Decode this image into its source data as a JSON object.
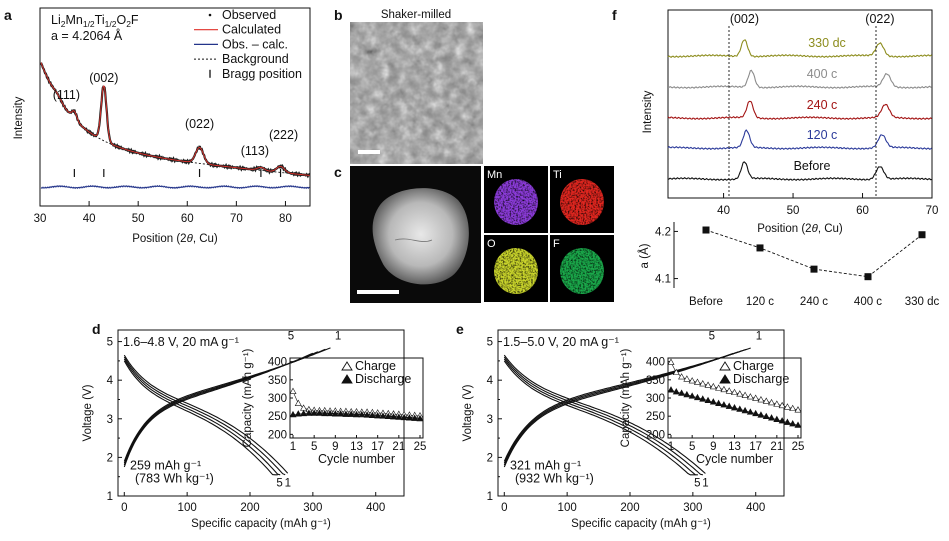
{
  "panels": {
    "a": {
      "letter": "a",
      "compound": "Li2Mn1/2Ti1/2O2F",
      "lattice_label": "a = 4.2064 Å",
      "ylabel": "Intensity",
      "xlabel": "Position (2θ, Cu)",
      "xticks": [
        30,
        40,
        50,
        60,
        70,
        80
      ],
      "legend": [
        "Observed",
        "Calculated",
        "Obs. – calc.",
        "Background",
        "Bragg position"
      ],
      "peaks": [
        {
          "label": "(111)",
          "x": 37
        },
        {
          "label": "(002)",
          "x": 43
        },
        {
          "label": "(022)",
          "x": 62.5
        },
        {
          "label": "(113)",
          "x": 75
        },
        {
          "label": "(222)",
          "x": 79
        }
      ],
      "bragg_positions": [
        37,
        43,
        62.5,
        75,
        79
      ]
    },
    "b": {
      "letter": "b",
      "title": "Shaker-milled"
    },
    "c": {
      "letter": "c",
      "maps": [
        "Mn",
        "Ti",
        "O",
        "F"
      ],
      "colors": [
        "#8b3bd9",
        "#e0261f",
        "#c9d42b",
        "#1aa84a"
      ]
    },
    "f": {
      "letter": "f",
      "ylabel": "Intensity",
      "xlabel": "Position (2θ, Cu)",
      "xticks": [
        40,
        50,
        60,
        70
      ],
      "peak_labels": [
        {
          "label": "(002)",
          "x": 43
        },
        {
          "label": "(022)",
          "x": 62.5
        }
      ],
      "patterns": [
        {
          "name": "330 dc",
          "color": "#8d8d1e"
        },
        {
          "name": "400 c",
          "color": "#8c8c8c"
        },
        {
          "name": "240 c",
          "color": "#a31414"
        },
        {
          "name": "120 c",
          "color": "#2b3a9a"
        },
        {
          "name": "Before",
          "color": "#111111"
        }
      ],
      "lattice": {
        "ylabel": "a (Å)",
        "yticks": [
          4.1,
          4.2
        ],
        "categories": [
          "Before",
          "120 c",
          "240 c",
          "400 c",
          "330 dc"
        ],
        "values": [
          4.203,
          4.165,
          4.12,
          4.104,
          4.193
        ]
      }
    },
    "d": {
      "letter": "d",
      "condition": "1.6–4.8 V, 20 mA g⁻¹",
      "ylabel": "Voltage (V)",
      "xlabel": "Specific capacity (mAh g⁻¹)",
      "xticks": [
        0,
        100,
        200,
        300,
        400
      ],
      "yticks": [
        1,
        1.5,
        2,
        2.5,
        3,
        3.5,
        4,
        4.5,
        5
      ],
      "capacity_note": "259 mAh g⁻¹",
      "energy_note": "(783 Wh kg⁻¹)",
      "charge_cycle_labels": [
        "5",
        "1"
      ],
      "discharge_cycle_labels": [
        "5",
        "1"
      ],
      "inset": {
        "ylabel": "Capacity (mAh g⁻¹)",
        "xlabel": "Cycle number",
        "xticks": [
          1,
          5,
          9,
          13,
          17,
          21,
          25
        ],
        "yticks": [
          200,
          250,
          300,
          350,
          400
        ],
        "series": [
          {
            "name": "Charge",
            "values": [
              318,
              285,
              272,
              268,
              266,
              265,
              265,
              264,
              264,
              263,
              263,
              262,
              262,
              261,
              261,
              260,
              259,
              258,
              257,
              256,
              255,
              254,
              253,
              252,
              251
            ]
          },
          {
            "name": "Discharge",
            "values": [
              254,
              256,
              257,
              258,
              258,
              258,
              257,
              257,
              256,
              256,
              255,
              255,
              254,
              254,
              253,
              252,
              251,
              250,
              249,
              248,
              247,
              246,
              245,
              244,
              243
            ]
          }
        ]
      }
    },
    "e": {
      "letter": "e",
      "condition": "1.5–5.0 V, 20 mA g⁻¹",
      "ylabel": "Voltage (V)",
      "xlabel": "Specific capacity (mAh g⁻¹)",
      "xticks": [
        0,
        100,
        200,
        300,
        400
      ],
      "yticks": [
        1,
        1.5,
        2,
        2.5,
        3,
        3.5,
        4,
        4.5,
        5
      ],
      "capacity_note": "321 mAh  g⁻¹",
      "energy_note": "(932 Wh kg⁻¹)",
      "charge_cycle_labels": [
        "5",
        "1"
      ],
      "discharge_cycle_labels": [
        "5",
        "1"
      ],
      "inset": {
        "ylabel": "Capacity (mAh g⁻¹)",
        "xlabel": "Cycle number",
        "xticks": [
          1,
          5,
          9,
          13,
          17,
          21,
          25
        ],
        "yticks": [
          200,
          250,
          300,
          350,
          400
        ],
        "series": [
          {
            "name": "Charge",
            "values": [
              398,
              370,
              358,
              352,
              347,
              343,
              339,
              335,
              331,
              327,
              323,
              319,
              315,
              311,
              307,
              303,
              299,
              295,
              291,
              287,
              283,
              279,
              275,
              271,
              267
            ]
          },
          {
            "name": "Discharge",
            "values": [
              322,
              317,
              313,
              309,
              305,
              301,
              297,
              293,
              289,
              285,
              281,
              277,
              273,
              269,
              265,
              261,
              257,
              253,
              249,
              245,
              241,
              237,
              233,
              229,
              225
            ]
          }
        ]
      }
    }
  },
  "chart_data": [
    {
      "type": "line",
      "xlabel": "Position (2θ, Cu)",
      "ylabel": "Intensity",
      "xlim": [
        30,
        85
      ],
      "series": [
        {
          "name": "Observed"
        },
        {
          "name": "Calculated"
        },
        {
          "name": "Obs. – calc."
        },
        {
          "name": "Background"
        }
      ]
    },
    {
      "type": "scatter",
      "ylabel": "a (Å)",
      "categories": [
        "Before",
        "120 c",
        "240 c",
        "400 c",
        "330 dc"
      ],
      "values": [
        4.203,
        4.165,
        4.12,
        4.104,
        4.193
      ],
      "ylim": [
        4.08,
        4.22
      ]
    },
    {
      "type": "line",
      "xlabel": "Cycle number",
      "ylabel": "Capacity (mAh g⁻¹)",
      "x": [
        1,
        2,
        3,
        4,
        5,
        6,
        7,
        8,
        9,
        10,
        11,
        12,
        13,
        14,
        15,
        16,
        17,
        18,
        19,
        20,
        21,
        22,
        23,
        24,
        25
      ],
      "series": [
        {
          "name": "Charge",
          "values": [
            318,
            285,
            272,
            268,
            266,
            265,
            265,
            264,
            264,
            263,
            263,
            262,
            262,
            261,
            261,
            260,
            259,
            258,
            257,
            256,
            255,
            254,
            253,
            252,
            251
          ]
        },
        {
          "name": "Discharge",
          "values": [
            254,
            256,
            257,
            258,
            258,
            258,
            257,
            257,
            256,
            256,
            255,
            255,
            254,
            254,
            253,
            252,
            251,
            250,
            249,
            248,
            247,
            246,
            245,
            244,
            243
          ]
        }
      ],
      "ylim": [
        200,
        400
      ]
    },
    {
      "type": "line",
      "xlabel": "Cycle number",
      "ylabel": "Capacity (mAh g⁻¹)",
      "x": [
        1,
        2,
        3,
        4,
        5,
        6,
        7,
        8,
        9,
        10,
        11,
        12,
        13,
        14,
        15,
        16,
        17,
        18,
        19,
        20,
        21,
        22,
        23,
        24,
        25
      ],
      "series": [
        {
          "name": "Charge",
          "values": [
            398,
            370,
            358,
            352,
            347,
            343,
            339,
            335,
            331,
            327,
            323,
            319,
            315,
            311,
            307,
            303,
            299,
            295,
            291,
            287,
            283,
            279,
            275,
            271,
            267
          ]
        },
        {
          "name": "Discharge",
          "values": [
            322,
            317,
            313,
            309,
            305,
            301,
            297,
            293,
            289,
            285,
            281,
            277,
            273,
            269,
            265,
            261,
            257,
            253,
            249,
            245,
            241,
            237,
            233,
            229,
            225
          ]
        }
      ],
      "ylim": [
        200,
        400
      ]
    }
  ]
}
